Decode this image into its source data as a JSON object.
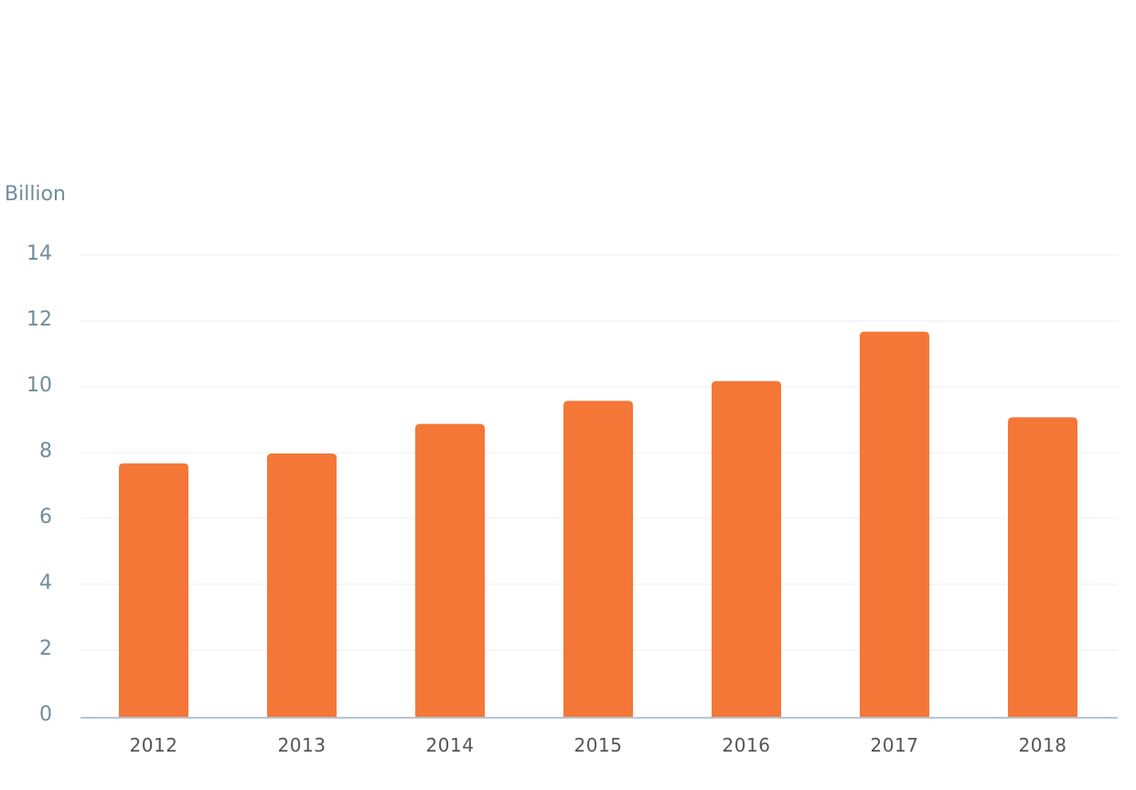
{
  "chart_data": {
    "type": "bar",
    "unit_label": "Billion",
    "categories": [
      "2012",
      "2013",
      "2014",
      "2015",
      "2016",
      "2017",
      "2018"
    ],
    "values": [
      7.7,
      8.0,
      8.9,
      9.6,
      10.2,
      11.7,
      9.1
    ],
    "y_ticks": [
      "0",
      "2",
      "4",
      "6",
      "8",
      "10",
      "12",
      "14"
    ],
    "ylim": [
      0,
      14
    ],
    "grid": true,
    "bar_color": "#f47738",
    "gridline_color": "#eeeeee",
    "axis_label_color": "#6f8d99"
  }
}
